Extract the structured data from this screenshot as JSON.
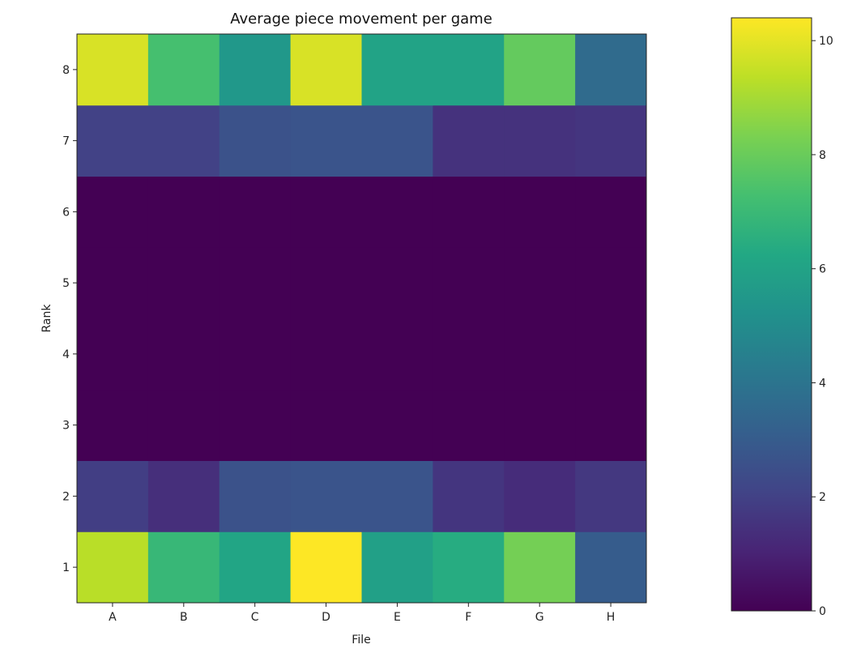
{
  "chart_data": {
    "type": "heatmap",
    "title": "Average piece movement per game",
    "xlabel": "File",
    "ylabel": "Rank",
    "x_categories": [
      "A",
      "B",
      "C",
      "D",
      "E",
      "F",
      "G",
      "H"
    ],
    "y_categories": [
      "1",
      "2",
      "3",
      "4",
      "5",
      "6",
      "7",
      "8"
    ],
    "values": [
      [
        9.3,
        6.9,
        6.1,
        10.4,
        5.9,
        6.4,
        8.2,
        3.0
      ],
      [
        1.9,
        1.4,
        2.6,
        2.7,
        2.7,
        1.6,
        1.3,
        1.7
      ],
      [
        0,
        0,
        0,
        0,
        0,
        0,
        0,
        0
      ],
      [
        0,
        0,
        0,
        0,
        0,
        0,
        0,
        0
      ],
      [
        0,
        0,
        0,
        0,
        0,
        0,
        0,
        0
      ],
      [
        0,
        0,
        0,
        0,
        0,
        0,
        0,
        0
      ],
      [
        2.0,
        2.0,
        2.6,
        2.7,
        2.7,
        1.5,
        1.5,
        1.6
      ],
      [
        9.8,
        7.3,
        5.5,
        9.8,
        6.0,
        6.0,
        7.9,
        3.6
      ]
    ],
    "colormap": "viridis",
    "vmin": 0,
    "vmax": 10.4,
    "colorbar_ticks": [
      "0",
      "2",
      "4",
      "6",
      "8",
      "10"
    ],
    "grid": false
  }
}
